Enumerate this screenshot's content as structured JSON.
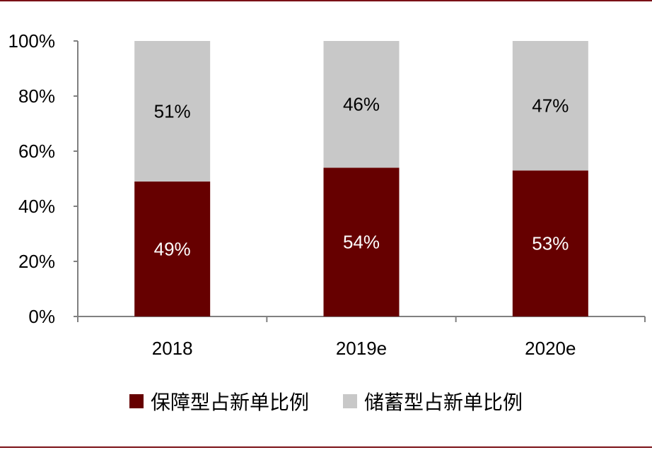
{
  "chart_data": {
    "type": "bar",
    "stacked": true,
    "categories": [
      "2018",
      "2019e",
      "2020e"
    ],
    "series": [
      {
        "name": "保障型占新单比例",
        "values": [
          49,
          54,
          53
        ],
        "color": "#660000",
        "label_color": "#ffffff",
        "labels": [
          "49%",
          "54%",
          "53%"
        ]
      },
      {
        "name": "储蓄型占新单比例",
        "values": [
          51,
          46,
          47
        ],
        "color": "#c8c8c8",
        "label_color": "#000000",
        "labels": [
          "51%",
          "46%",
          "47%"
        ]
      }
    ],
    "ylim": [
      0,
      100
    ],
    "yticks": [
      0,
      20,
      40,
      60,
      80,
      100
    ],
    "ytick_labels": [
      "0%",
      "20%",
      "40%",
      "60%",
      "80%",
      "100%"
    ],
    "legend_position": "bottom",
    "grid": false
  },
  "colors": {
    "rule": "#7a1016",
    "axis": "#808080"
  }
}
